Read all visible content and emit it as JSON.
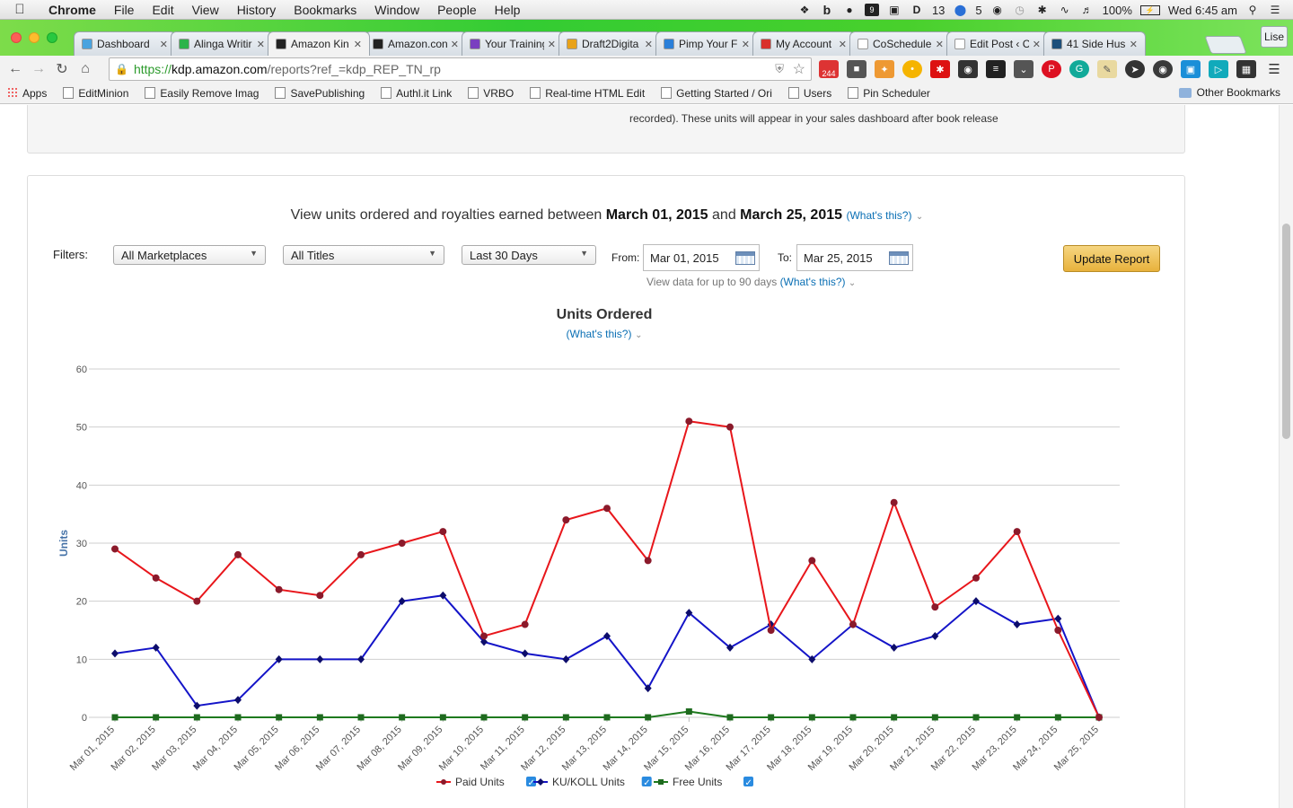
{
  "menubar": {
    "app": "Chrome",
    "items": [
      "File",
      "Edit",
      "View",
      "History",
      "Bookmarks",
      "Window",
      "People",
      "Help"
    ],
    "status": {
      "badge13": "13",
      "badge5": "5",
      "battery": "100%",
      "clock": "Wed 6:45 am"
    }
  },
  "tabs": [
    {
      "label": "Dashboard",
      "color": "#4aa3df"
    },
    {
      "label": "Alinga Writir",
      "color": "#2db34a"
    },
    {
      "label": "Amazon Kin",
      "color": "#222222"
    },
    {
      "label": "Amazon.con",
      "color": "#222222"
    },
    {
      "label": "Your Training",
      "color": "#7a3fc0"
    },
    {
      "label": "Draft2Digita",
      "color": "#e8a21a"
    },
    {
      "label": "Pimp Your F",
      "color": "#2a7fd9"
    },
    {
      "label": "My Account",
      "color": "#d9302a"
    },
    {
      "label": "CoSchedule",
      "color": "#ffffff"
    },
    {
      "label": "Edit Post ‹ C",
      "color": "#ffffff"
    },
    {
      "label": "41 Side Hus",
      "color": "#1d4f7a"
    }
  ],
  "profile": "Lise",
  "omnibox": {
    "scheme": "https://",
    "domain": "kdp.amazon.com",
    "path": "/reports?ref_=kdp_REP_TN_rp"
  },
  "ext_badge": "244",
  "bookmarks": [
    "Apps",
    "EditMinion",
    "Easily Remove Imag",
    "SavePublishing",
    "Authl.it Link",
    "VRBO",
    "Real-time HTML Edit",
    "Getting Started / Ori",
    "Users",
    "Pin Scheduler"
  ],
  "other_bookmarks": "Other Bookmarks",
  "report": {
    "top_note": "recorded). These units will appear in your sales dashboard after book release",
    "headline_pre": "View units ordered and royalties earned between ",
    "headline_start": "March 01, 2015",
    "headline_and": " and ",
    "headline_end": "March 25, 2015",
    "whats_this": "(What's this?)",
    "filters_label": "Filters:",
    "marketplace": "All Marketplaces",
    "titles": "All Titles",
    "range": "Last 30 Days",
    "from_label": "From:",
    "from_value": "Mar 01, 2015",
    "to_label": "To:",
    "to_value": "Mar 25, 2015",
    "hint": "View data for up to 90 days",
    "update_button": "Update Report"
  },
  "chart_data": {
    "type": "line",
    "title": "Units Ordered",
    "subtitle": "(What's this?)",
    "xlabel": "",
    "ylabel": "Units",
    "ylim": [
      0,
      60
    ],
    "yticks": [
      0,
      10,
      20,
      30,
      40,
      50,
      60
    ],
    "grid": true,
    "legend": "bottom",
    "categories": [
      "Mar 01, 2015",
      "Mar 02, 2015",
      "Mar 03, 2015",
      "Mar 04, 2015",
      "Mar 05, 2015",
      "Mar 06, 2015",
      "Mar 07, 2015",
      "Mar 08, 2015",
      "Mar 09, 2015",
      "Mar 10, 2015",
      "Mar 11, 2015",
      "Mar 12, 2015",
      "Mar 13, 2015",
      "Mar 14, 2015",
      "Mar 15, 2015",
      "Mar 16, 2015",
      "Mar 17, 2015",
      "Mar 18, 2015",
      "Mar 19, 2015",
      "Mar 20, 2015",
      "Mar 21, 2015",
      "Mar 22, 2015",
      "Mar 23, 2015",
      "Mar 24, 2015",
      "Mar 25, 2015"
    ],
    "series": [
      {
        "name": "Paid Units",
        "color": "#e8161b",
        "marker": "circle",
        "values": [
          29,
          24,
          20,
          28,
          22,
          21,
          28,
          30,
          32,
          14,
          16,
          34,
          36,
          27,
          51,
          50,
          15,
          27,
          16,
          37,
          19,
          24,
          32,
          15,
          0
        ]
      },
      {
        "name": "KU/KOLL Units",
        "color": "#1414c8",
        "marker": "diamond",
        "values": [
          11,
          12,
          2,
          3,
          10,
          10,
          10,
          20,
          21,
          13,
          11,
          10,
          14,
          5,
          18,
          12,
          16,
          10,
          16,
          12,
          14,
          20,
          16,
          17,
          0
        ]
      },
      {
        "name": "Free Units",
        "color": "#1e7a1e",
        "marker": "square",
        "values": [
          0,
          0,
          0,
          0,
          0,
          0,
          0,
          0,
          0,
          0,
          0,
          0,
          0,
          0,
          1,
          0,
          0,
          0,
          0,
          0,
          0,
          0,
          0,
          0,
          0
        ]
      }
    ]
  }
}
